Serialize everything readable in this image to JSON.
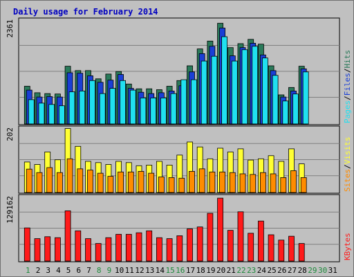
{
  "title": "Daily usage for February 2014",
  "colors": {
    "background": "#c0c0c0",
    "title": "#0000c0",
    "hits": "#2a7a5a",
    "files": "#1a3fd6",
    "pages": "#20e0f0",
    "visits": "#ffff33",
    "sites": "#ff8c00",
    "kbytes": "#ff1a1a",
    "weekend_day_label": "#1e8a3c",
    "weekday_label": "#0a0a8a"
  },
  "chart_data": [
    {
      "type": "bar",
      "panel": "hits_files_pages",
      "ymax_label": "2361",
      "ylim": [
        0,
        2361
      ],
      "legend": [
        {
          "text": "Pages",
          "color_key": "pages"
        },
        {
          "text": "/",
          "color_key": "slash"
        },
        {
          "text": "Files",
          "color_key": "files"
        },
        {
          "text": "/",
          "color_key": "slash"
        },
        {
          "text": "Hits",
          "color_key": "hits"
        }
      ],
      "categories": [
        "1",
        "2",
        "3",
        "4",
        "5",
        "6",
        "7",
        "8",
        "9",
        "10",
        "11",
        "12",
        "13",
        "14",
        "15",
        "16",
        "17",
        "18",
        "19",
        "20",
        "21",
        "22",
        "23",
        "24",
        "25",
        "26",
        "27",
        "28",
        "29",
        "30",
        "31"
      ],
      "series": [
        {
          "name": "Hits",
          "values": [
            870,
            720,
            700,
            690,
            1330,
            1230,
            1230,
            1040,
            1150,
            1210,
            920,
            810,
            810,
            790,
            870,
            1000,
            1340,
            1730,
            1910,
            2320,
            1760,
            1850,
            1950,
            1840,
            1340,
            670,
            840,
            1330,
            null,
            null,
            null
          ]
        },
        {
          "name": "Files",
          "values": [
            780,
            620,
            630,
            620,
            1180,
            1170,
            1110,
            960,
            1010,
            1140,
            820,
            730,
            700,
            720,
            760,
            880,
            1200,
            1620,
            1790,
            2210,
            1570,
            1760,
            1860,
            1590,
            1230,
            620,
            760,
            1270,
            null,
            null,
            null
          ]
        },
        {
          "name": "Pages",
          "values": [
            560,
            480,
            450,
            420,
            740,
            760,
            1000,
            700,
            820,
            1000,
            780,
            600,
            600,
            600,
            700,
            1020,
            1020,
            1450,
            1560,
            2010,
            1450,
            1710,
            1790,
            1520,
            1120,
            530,
            690,
            1200,
            null,
            null,
            null
          ]
        }
      ]
    },
    {
      "type": "bar",
      "panel": "visits_sites",
      "ymax_label": "202",
      "ylim": [
        0,
        202
      ],
      "legend": [
        {
          "text": "Sites",
          "color_key": "sites"
        },
        {
          "text": "/",
          "color_key": "slash"
        },
        {
          "text": "Visits",
          "color_key": "visits"
        }
      ],
      "categories": [
        "1",
        "2",
        "3",
        "4",
        "5",
        "6",
        "7",
        "8",
        "9",
        "10",
        "11",
        "12",
        "13",
        "14",
        "15",
        "16",
        "17",
        "18",
        "19",
        "20",
        "21",
        "22",
        "23",
        "24",
        "25",
        "26",
        "27",
        "28",
        "29",
        "30",
        "31"
      ],
      "series": [
        {
          "name": "Visits",
          "values": [
            98,
            90,
            130,
            105,
            205,
            148,
            100,
            96,
            90,
            100,
            96,
            86,
            88,
            100,
            88,
            120,
            162,
            146,
            108,
            142,
            130,
            140,
            104,
            108,
            118,
            100,
            140,
            92,
            null,
            null,
            null
          ]
        },
        {
          "name": "Sites",
          "values": [
            75,
            64,
            80,
            64,
            108,
            76,
            72,
            62,
            52,
            66,
            66,
            68,
            62,
            50,
            48,
            46,
            68,
            76,
            66,
            66,
            64,
            60,
            58,
            64,
            60,
            48,
            70,
            48,
            null,
            null,
            null
          ]
        }
      ]
    },
    {
      "type": "bar",
      "panel": "kbytes",
      "ymax_label": "129162",
      "ylim": [
        0,
        129162
      ],
      "legend": [
        {
          "text": "KBytes",
          "color_key": "kbytes"
        }
      ],
      "categories": [
        "1",
        "2",
        "3",
        "4",
        "5",
        "6",
        "7",
        "8",
        "9",
        "10",
        "11",
        "12",
        "13",
        "14",
        "15",
        "16",
        "17",
        "18",
        "19",
        "20",
        "21",
        "22",
        "23",
        "24",
        "25",
        "26",
        "27",
        "28",
        "29",
        "30",
        "31"
      ],
      "series": [
        {
          "name": "KBytes",
          "values": [
            68000,
            46000,
            50000,
            48000,
            103000,
            62000,
            46000,
            36000,
            48000,
            55000,
            55000,
            58000,
            62000,
            48000,
            46000,
            52000,
            66000,
            70000,
            98000,
            129000,
            63000,
            101000,
            57000,
            82000,
            54000,
            43000,
            51000,
            36000,
            null,
            null,
            null
          ]
        }
      ]
    }
  ]
}
